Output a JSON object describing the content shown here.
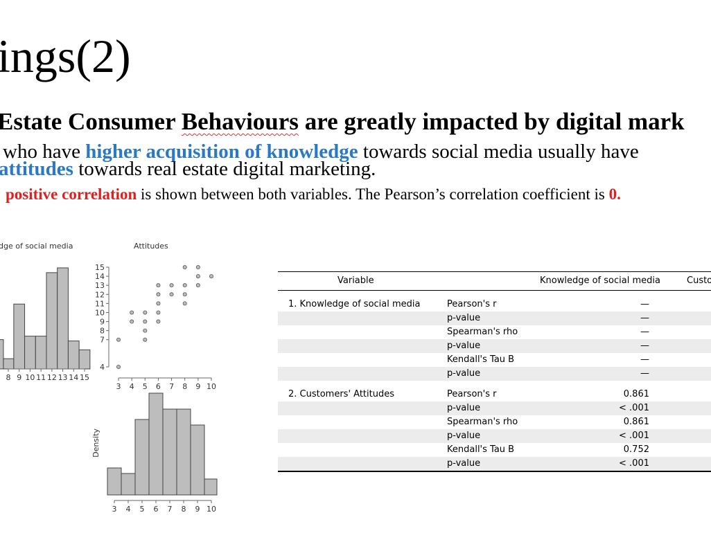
{
  "title": "ings(2)",
  "heading": [
    "Estate Consumer ",
    "Behaviours",
    " are greatly impacted by digital mark"
  ],
  "lines": [
    [
      "who have ",
      "higher acquisition of knowledge",
      " towards social media usually have"
    ],
    [
      "attitudes",
      " towards real estate digital marketing."
    ],
    [
      "positive correlation",
      " is shown between both variables. The Pearson’s correlation coefficient is ",
      "0."
    ]
  ],
  "charts": {
    "knowledge_hist": {
      "type": "histogram",
      "title": "dge of social media",
      "bins": [
        6.55,
        7.55,
        8.5,
        9.5,
        10.5,
        11.5,
        12.5,
        13.5,
        14.5,
        15.5
      ],
      "values": [
        4.3,
        1.5,
        9.5,
        4.8,
        4.8,
        14.1,
        14.8,
        4.1,
        2.8
      ],
      "xlim": [
        8,
        15
      ],
      "xticks": [
        8,
        9,
        10,
        11,
        12,
        13,
        14,
        15
      ],
      "ylim": [
        0,
        15
      ]
    },
    "scatter": {
      "type": "scatter",
      "title": "Attitudes",
      "x": [
        3,
        3,
        4,
        4,
        5,
        5,
        5,
        5,
        6,
        6,
        6,
        6,
        6,
        7,
        7,
        8,
        8,
        8,
        8,
        9,
        9,
        9,
        10
      ],
      "y": [
        7,
        4,
        10,
        9,
        10,
        9,
        8,
        7,
        13,
        12,
        11,
        10,
        9,
        13,
        12,
        13,
        12,
        11,
        15,
        15,
        14,
        13,
        14
      ],
      "xlim": [
        3,
        10
      ],
      "xticks": [
        3,
        4,
        5,
        6,
        7,
        8,
        9,
        10
      ],
      "ylim": [
        4,
        15
      ],
      "yticks": [
        4,
        7,
        8,
        9,
        10,
        11,
        12,
        13,
        14,
        15
      ]
    },
    "attitudes_hist": {
      "type": "histogram",
      "ylabel": "Density",
      "bins": [
        2.5,
        3.5,
        4.5,
        5.5,
        6.5,
        7.5,
        8.5,
        9.5,
        10.4
      ],
      "values": [
        0.39,
        0.31,
        1.09,
        1.47,
        1.24,
        1.24,
        1.01,
        0.23
      ],
      "xlim": [
        3,
        10
      ],
      "xticks": [
        3,
        4,
        5,
        6,
        7,
        8,
        9,
        10
      ],
      "ylim": [
        0,
        1.5
      ]
    }
  },
  "table": {
    "header": [
      "Variable",
      "Knowledge of social media",
      "Custo"
    ],
    "groups": [
      {
        "variable": "1. Knowledge of social media",
        "rows": [
          [
            "Pearson's r",
            "—"
          ],
          [
            "p-value",
            "—"
          ],
          [
            "Spearman's rho",
            "—"
          ],
          [
            "p-value",
            "—"
          ],
          [
            "Kendall's Tau B",
            "—"
          ],
          [
            "p-value",
            "—"
          ]
        ]
      },
      {
        "variable": "2. Customers' Attitudes",
        "rows": [
          [
            "Pearson's r",
            "0.861"
          ],
          [
            "p-value",
            "< .001"
          ],
          [
            "Spearman's rho",
            "0.861"
          ],
          [
            "p-value",
            "< .001"
          ],
          [
            "Kendall's Tau B",
            "0.752"
          ],
          [
            "p-value",
            "< .001"
          ]
        ]
      }
    ]
  }
}
